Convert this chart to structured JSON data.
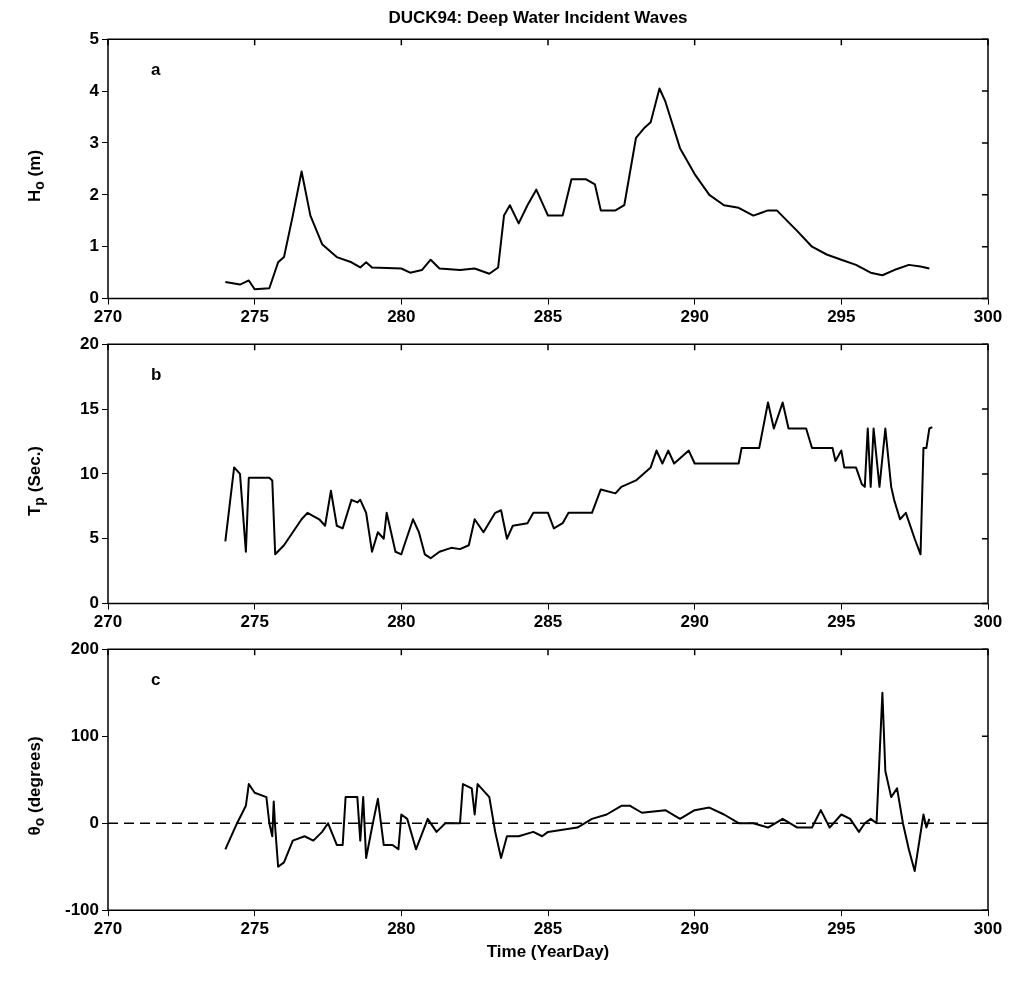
{
  "chart_data": [
    {
      "type": "line",
      "title": "DUCK94: Deep Water Incident Waves",
      "ylabel": "H$_{o}$ (m)",
      "annotations": [
        "a"
      ],
      "color": "#000000",
      "xlim": [
        270,
        300
      ],
      "xticks": [
        270,
        275,
        280,
        285,
        290,
        295,
        300
      ],
      "ylim": [
        0,
        5
      ],
      "yticks": [
        0,
        1,
        2,
        3,
        4,
        5
      ],
      "grid": false,
      "x": [
        274.0,
        274.5,
        274.8,
        275.0,
        275.5,
        275.8,
        276.0,
        276.3,
        276.6,
        276.9,
        277.3,
        277.8,
        278.3,
        278.6,
        278.8,
        279.0,
        280.0,
        280.3,
        280.7,
        281.0,
        281.3,
        282.0,
        282.5,
        283.0,
        283.3,
        283.5,
        283.7,
        284.0,
        284.3,
        284.6,
        285.0,
        285.5,
        285.8,
        286.3,
        286.6,
        286.8,
        287.3,
        287.6,
        288.0,
        288.3,
        288.5,
        288.8,
        289.0,
        289.5,
        290.0,
        290.5,
        291.0,
        291.5,
        292.0,
        292.5,
        292.8,
        293.5,
        294.0,
        294.5,
        295.0,
        295.5,
        296.0,
        296.4,
        296.8,
        297.3,
        297.7,
        298.0
      ],
      "values": [
        0.32,
        0.27,
        0.35,
        0.18,
        0.2,
        0.7,
        0.8,
        1.6,
        2.45,
        1.6,
        1.05,
        0.8,
        0.7,
        0.6,
        0.7,
        0.6,
        0.58,
        0.5,
        0.55,
        0.75,
        0.58,
        0.55,
        0.58,
        0.48,
        0.6,
        1.6,
        1.8,
        1.45,
        1.8,
        2.1,
        1.6,
        1.6,
        2.3,
        2.3,
        2.2,
        1.7,
        1.7,
        1.8,
        3.1,
        3.3,
        3.4,
        4.05,
        3.8,
        2.9,
        2.4,
        2.0,
        1.8,
        1.75,
        1.6,
        1.7,
        1.7,
        1.3,
        1.0,
        0.85,
        0.75,
        0.65,
        0.5,
        0.45,
        0.55,
        0.65,
        0.62,
        0.58
      ]
    },
    {
      "type": "line",
      "ylabel": "T$_{p}$ (Sec.)",
      "annotations": [
        "b"
      ],
      "color": "#000000",
      "xlim": [
        270,
        300
      ],
      "xticks": [
        270,
        275,
        280,
        285,
        290,
        295,
        300
      ],
      "ylim": [
        0,
        20
      ],
      "yticks": [
        0,
        5,
        10,
        15,
        20
      ],
      "grid": false,
      "x": [
        274.0,
        274.3,
        274.5,
        274.7,
        274.8,
        275.5,
        275.6,
        275.7,
        276.0,
        276.3,
        276.6,
        276.8,
        277.2,
        277.4,
        277.6,
        277.8,
        278.0,
        278.3,
        278.5,
        278.6,
        278.8,
        279.0,
        279.2,
        279.4,
        279.5,
        279.8,
        280.0,
        280.1,
        280.4,
        280.6,
        280.8,
        281.0,
        281.3,
        281.7,
        282.0,
        282.3,
        282.5,
        282.8,
        283.2,
        283.4,
        283.6,
        283.8,
        284.3,
        284.5,
        285.0,
        285.2,
        285.5,
        285.7,
        286.5,
        286.8,
        287.3,
        287.5,
        288.0,
        288.5,
        288.7,
        288.9,
        289.1,
        289.3,
        289.8,
        290.0,
        291.5,
        291.6,
        292.2,
        292.5,
        292.7,
        293.0,
        293.2,
        293.8,
        294.0,
        294.7,
        294.8,
        295.0,
        295.1,
        295.5,
        295.7,
        295.8,
        295.9,
        296.0,
        296.1,
        296.3,
        296.5,
        296.7,
        296.8,
        297.0,
        297.2,
        297.5,
        297.7,
        297.8,
        297.9,
        298.0,
        298.1
      ],
      "values": [
        4.8,
        10.5,
        10,
        4,
        9.7,
        9.7,
        9.5,
        3.8,
        4.5,
        5.5,
        6.5,
        7,
        6.5,
        6,
        8.7,
        6,
        5.8,
        8,
        7.8,
        8,
        7,
        4,
        5.5,
        5,
        7,
        4,
        3.8,
        4.5,
        6.5,
        5.5,
        3.8,
        3.5,
        4,
        4.3,
        4.2,
        4.5,
        6.5,
        5.5,
        7,
        7.2,
        5,
        6,
        6.2,
        7,
        7,
        5.8,
        6.2,
        7,
        7,
        8.8,
        8.5,
        9,
        9.5,
        10.5,
        11.8,
        10.8,
        11.8,
        10.8,
        11.8,
        10.8,
        10.8,
        12,
        12,
        15.5,
        13.5,
        15.5,
        13.5,
        13.5,
        12,
        12,
        11,
        11.8,
        10.5,
        10.5,
        9.2,
        9,
        13.5,
        9,
        13.5,
        9,
        13.5,
        9,
        8,
        6.5,
        7,
        5,
        3.8,
        12,
        12,
        13.5,
        13.6
      ]
    },
    {
      "type": "line",
      "ylabel": "θ$_{o}$ (degrees)",
      "xlabel": "Time (YearDay)",
      "annotations": [
        "c"
      ],
      "color": "#000000",
      "xlim": [
        270,
        300
      ],
      "xticks": [
        270,
        275,
        280,
        285,
        290,
        295,
        300
      ],
      "ylim": [
        -100,
        200
      ],
      "yticks": [
        -100,
        0,
        100,
        200
      ],
      "grid": false,
      "ref_lines": [
        {
          "axis": "y",
          "value": 0,
          "color": "#000000",
          "line_style": "dashed"
        }
      ],
      "x": [
        274.0,
        274.4,
        274.7,
        274.8,
        275.0,
        275.4,
        275.5,
        275.6,
        275.65,
        275.7,
        275.8,
        276.0,
        276.3,
        276.7,
        277.0,
        277.3,
        277.5,
        277.8,
        278.0,
        278.1,
        278.5,
        278.6,
        278.7,
        278.8,
        279.0,
        279.2,
        279.4,
        279.7,
        279.9,
        280.0,
        280.2,
        280.5,
        280.9,
        281.2,
        281.5,
        282.0,
        282.1,
        282.4,
        282.5,
        282.6,
        283.0,
        283.2,
        283.4,
        283.6,
        284.0,
        284.5,
        284.8,
        285.0,
        286.0,
        286.5,
        287.0,
        287.5,
        287.8,
        288.2,
        289.0,
        289.5,
        290.0,
        290.5,
        291.0,
        291.5,
        292.0,
        292.5,
        293.0,
        293.5,
        294.0,
        294.3,
        294.6,
        295.0,
        295.3,
        295.6,
        295.8,
        296.0,
        296.2,
        296.4,
        296.5,
        296.7,
        296.9,
        297.1,
        297.3,
        297.5,
        297.8,
        297.9,
        298.0
      ],
      "values": [
        -30,
        0,
        20,
        45,
        35,
        30,
        0,
        -15,
        25,
        -5,
        -50,
        -45,
        -20,
        -15,
        -20,
        -10,
        0,
        -25,
        -25,
        30,
        30,
        -20,
        30,
        -40,
        -5,
        28,
        -25,
        -25,
        -30,
        10,
        5,
        -30,
        5,
        -10,
        0,
        0,
        45,
        40,
        10,
        45,
        30,
        -10,
        -40,
        -15,
        -15,
        -10,
        -15,
        -10,
        -5,
        5,
        10,
        20,
        20,
        12,
        15,
        5,
        15,
        18,
        10,
        0,
        0,
        -5,
        5,
        -5,
        -5,
        15,
        -5,
        10,
        5,
        -10,
        0,
        5,
        0,
        150,
        60,
        30,
        40,
        0,
        -30,
        -55,
        10,
        -5,
        5
      ]
    }
  ]
}
